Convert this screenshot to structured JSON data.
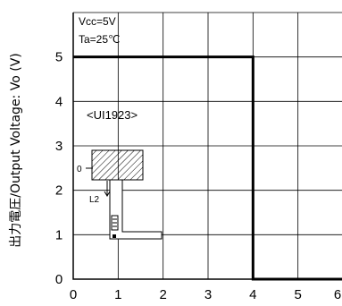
{
  "chart_data": {
    "type": "line",
    "ylabel": "出力電圧/Output Voltage: Vo (V)",
    "xlabel": "",
    "xlim": [
      0,
      6
    ],
    "ylim": [
      0,
      6
    ],
    "x_ticks": [
      "0",
      "1",
      "2",
      "3",
      "4",
      "5",
      "6"
    ],
    "y_ticks": [
      "0",
      "1",
      "2",
      "3",
      "4",
      "5"
    ],
    "grid": true,
    "series": [
      {
        "color": "#000000",
        "points": [
          [
            0,
            5
          ],
          [
            4,
            5
          ],
          [
            4,
            0
          ],
          [
            6,
            0
          ]
        ]
      }
    ],
    "annotations": {
      "vcc": "Vcc=5V",
      "ta": "Ta=25℃",
      "part": "<UI1923>",
      "zero_label": "0",
      "l2_label": "L2"
    }
  }
}
